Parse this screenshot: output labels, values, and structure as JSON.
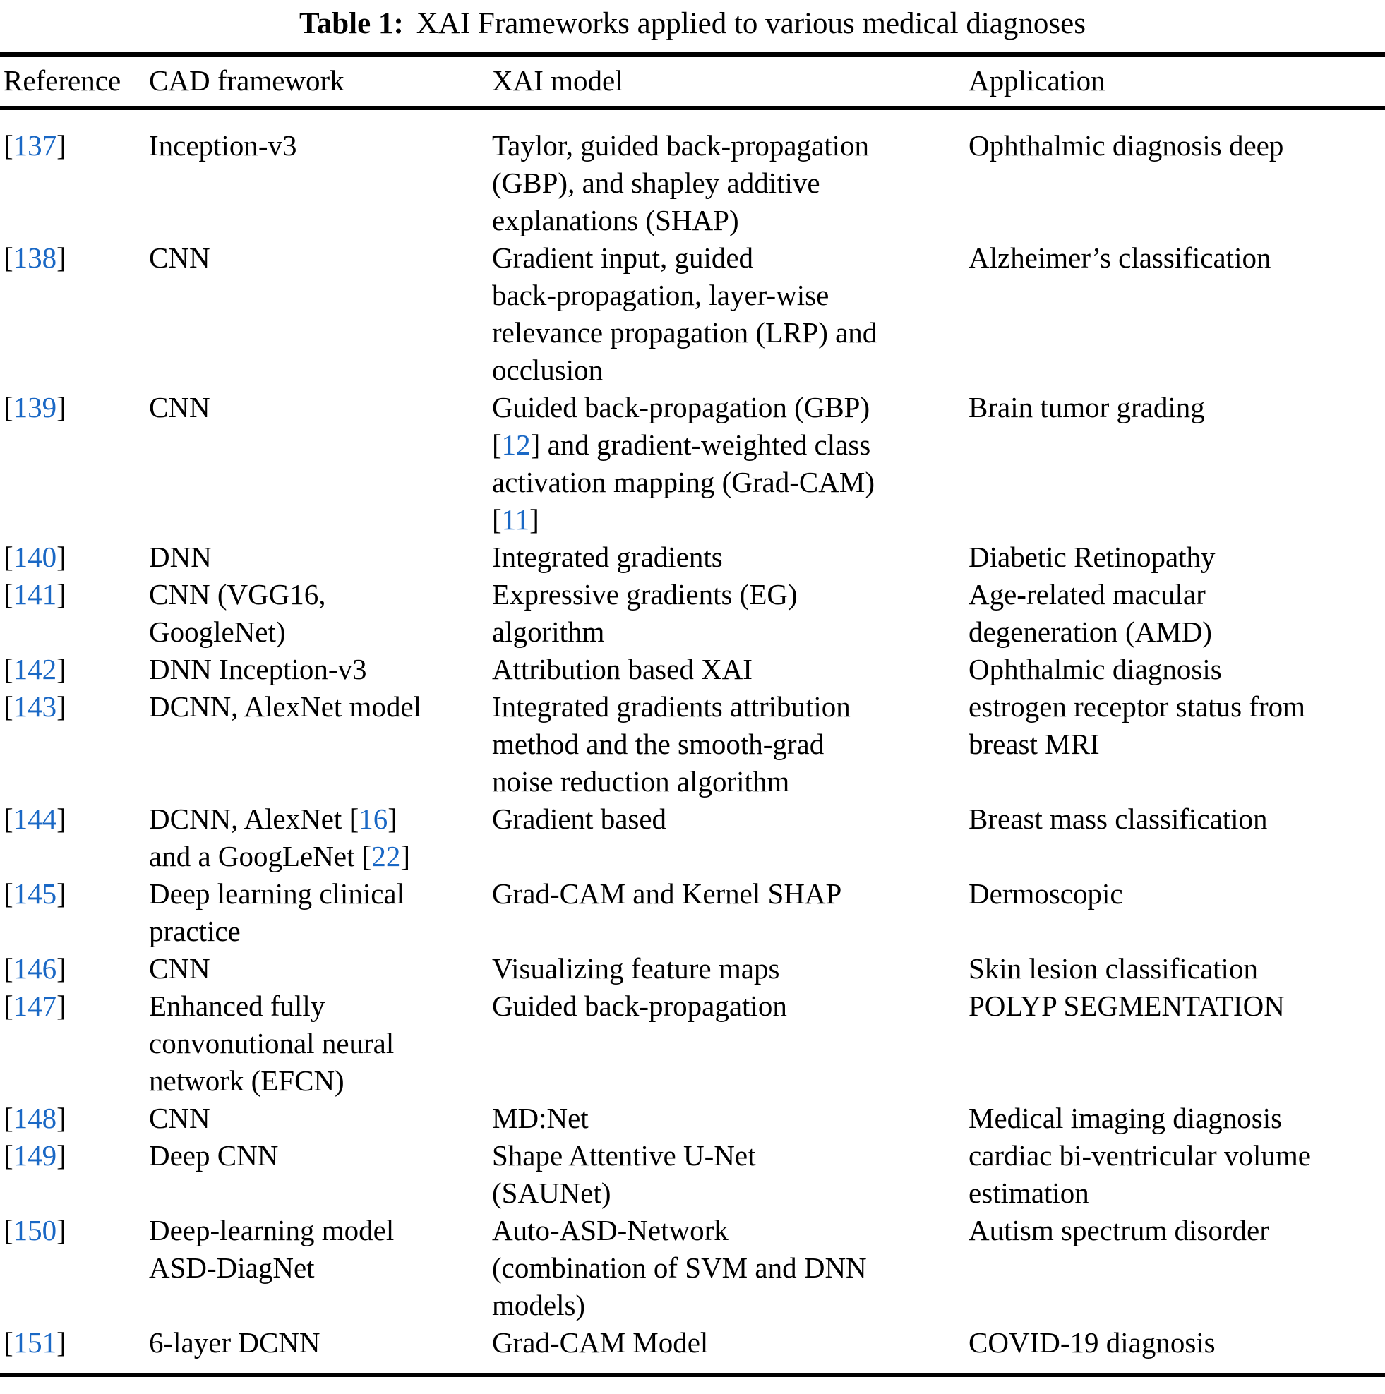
{
  "title": {
    "label": "Table 1:",
    "text": "XAI Frameworks applied to various medical diagnoses"
  },
  "colors": {
    "citation_blue": "#1A68C5",
    "text": "#000000",
    "background": "#ffffff"
  },
  "table": {
    "headers": [
      "Reference",
      "CAD framework",
      "XAI model",
      "Application"
    ],
    "rows": [
      {
        "ref": "[137]",
        "cad": "Inception-v3",
        "xai": "Taylor, guided back-propagation\n(GBP), and shapley additive\nexplanations (SHAP)",
        "app": "Ophthalmic diagnosis deep"
      },
      {
        "ref": "[138]",
        "cad": "CNN",
        "xai": "Gradient input, guided\nback-propagation, layer-wise\nrelevance propagation (LRP) and\nocclusion",
        "app": "Alzheimer’s classification"
      },
      {
        "ref": "[139]",
        "cad": "CNN",
        "xai": "Guided back-propagation (GBP)\n[12] and gradient-weighted class\nactivation mapping (Grad-CAM)\n[11]",
        "app": "Brain tumor grading"
      },
      {
        "ref": "[140]",
        "cad": "DNN",
        "xai": "Integrated gradients",
        "app": "Diabetic Retinopathy"
      },
      {
        "ref": "[141]",
        "cad": "CNN (VGG16,\nGoogleNet)",
        "xai": "Expressive gradients (EG)\nalgorithm",
        "app": "Age-related macular\ndegeneration (AMD)"
      },
      {
        "ref": "[142]",
        "cad": "DNN Inception-v3",
        "xai": "Attribution based XAI",
        "app": "Ophthalmic diagnosis"
      },
      {
        "ref": "[143]",
        "cad": "DCNN, AlexNet model",
        "xai": "Integrated gradients attribution\nmethod and the smooth-grad\nnoise reduction algorithm",
        "app": "estrogen receptor status from\nbreast MRI"
      },
      {
        "ref": "[144]",
        "cad": "DCNN, AlexNet [16]\nand a GoogLeNet [22]",
        "xai": "Gradient based",
        "app": "Breast mass classification"
      },
      {
        "ref": "[145]",
        "cad": "Deep learning clinical\npractice",
        "xai": "Grad-CAM and Kernel SHAP",
        "app": "Dermoscopic"
      },
      {
        "ref": "[146]",
        "cad": "CNN",
        "xai": "Visualizing feature maps",
        "app": "Skin lesion classification"
      },
      {
        "ref": "[147]",
        "cad": "Enhanced fully\nconvonutional neural\nnetwork (EFCN)",
        "xai": "Guided back-propagation",
        "app": "POLYP SEGMENTATION"
      },
      {
        "ref": "[148]",
        "cad": "CNN",
        "xai": "MD:Net",
        "app": "Medical imaging diagnosis"
      },
      {
        "ref": "[149]",
        "cad": "Deep CNN",
        "xai": "Shape Attentive U-Net\n(SAUNet)",
        "app": "cardiac bi-ventricular volume\nestimation"
      },
      {
        "ref": "[150]",
        "cad": "Deep-learning model\nASD-DiagNet",
        "xai": "Auto-ASD-Network\n(combination of SVM and DNN\nmodels)",
        "app": "Autism spectrum disorder"
      },
      {
        "ref": "[151]",
        "cad": "6-layer DCNN",
        "xai": "Grad-CAM Model",
        "app": "COVID-19 diagnosis"
      }
    ]
  }
}
